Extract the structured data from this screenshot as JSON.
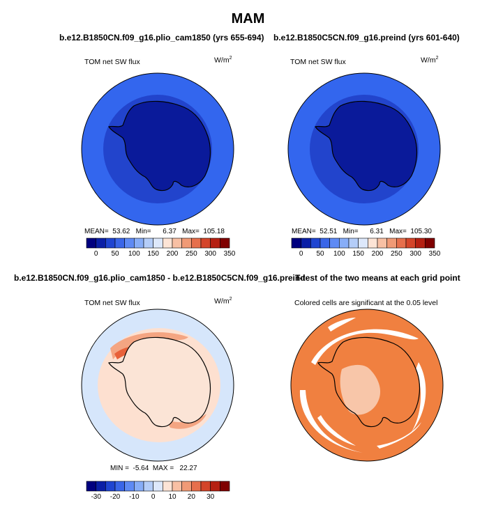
{
  "page": {
    "title": "MAM"
  },
  "panels": [
    {
      "case": "b.e12.B1850CN.f09_g16.plio_cam1850 (yrs 655-694)",
      "variable": "TOM net SW flux",
      "units": "W/m",
      "units_sup": "2",
      "stats": {
        "mean_label": "MEAN=",
        "mean": "53.62",
        "min_label": "Min=",
        "min": "6.37",
        "max_label": "Max=",
        "max": "105.18"
      },
      "colors": {
        "outer": "#3366ee",
        "mid": "#2244cc",
        "inner": "#0a1a9a"
      }
    },
    {
      "case": "b.e12.B1850C5CN.f09_g16.preind (yrs 601-640)",
      "variable": "TOM net SW flux",
      "units": "W/m",
      "units_sup": "2",
      "stats": {
        "mean_label": "MEAN=",
        "mean": "52.51",
        "min_label": "Min=",
        "min": "6.31",
        "max_label": "Max=",
        "max": "105.30"
      },
      "colors": {
        "outer": "#3366ee",
        "mid": "#2244cc",
        "inner": "#0a1a9a"
      }
    },
    {
      "case": "b.e12.B1850CN.f09_g16.plio_cam1850 - b.e12.B1850C5CN.f09_g16.preind",
      "variable": "TOM net SW flux",
      "units": "W/m",
      "units_sup": "2",
      "stats": {
        "min_label": "MIN =",
        "min": "-5.64",
        "max_label": "MAX =",
        "max": "22.27"
      },
      "colors": {
        "outer": "#d6e6fb",
        "mid": "#fde0d0",
        "inner": "#fbe4d6",
        "hot": "#f4a582",
        "hotter": "#e8613a"
      }
    },
    {
      "case": "T-test of the two means at each grid point",
      "note": "Colored cells are significant at the 0.05 level",
      "colors": {
        "fill": "#f08040"
      }
    }
  ],
  "colorbar_abs": {
    "colors": [
      "#00007f",
      "#0a1fa6",
      "#1f45d1",
      "#3a66e8",
      "#5e8af4",
      "#87adf7",
      "#b4cdf8",
      "#dde8fb",
      "#fde4d6",
      "#f8c0a4",
      "#f09a76",
      "#e66f4c",
      "#d4452a",
      "#b52012",
      "#7f0000"
    ],
    "labels": [
      "0",
      "50",
      "100",
      "150",
      "200",
      "250",
      "300",
      "350"
    ]
  },
  "colorbar_diff": {
    "colors": [
      "#00007f",
      "#0a1fa6",
      "#1f45d1",
      "#3a66e8",
      "#5e8af4",
      "#87adf7",
      "#b4cdf8",
      "#dde8fb",
      "#fde4d6",
      "#f8c0a4",
      "#f09a76",
      "#e66f4c",
      "#d4452a",
      "#b52012",
      "#7f0000"
    ],
    "labels": [
      "-30",
      "-20",
      "-10",
      "0",
      "10",
      "20",
      "30"
    ]
  }
}
